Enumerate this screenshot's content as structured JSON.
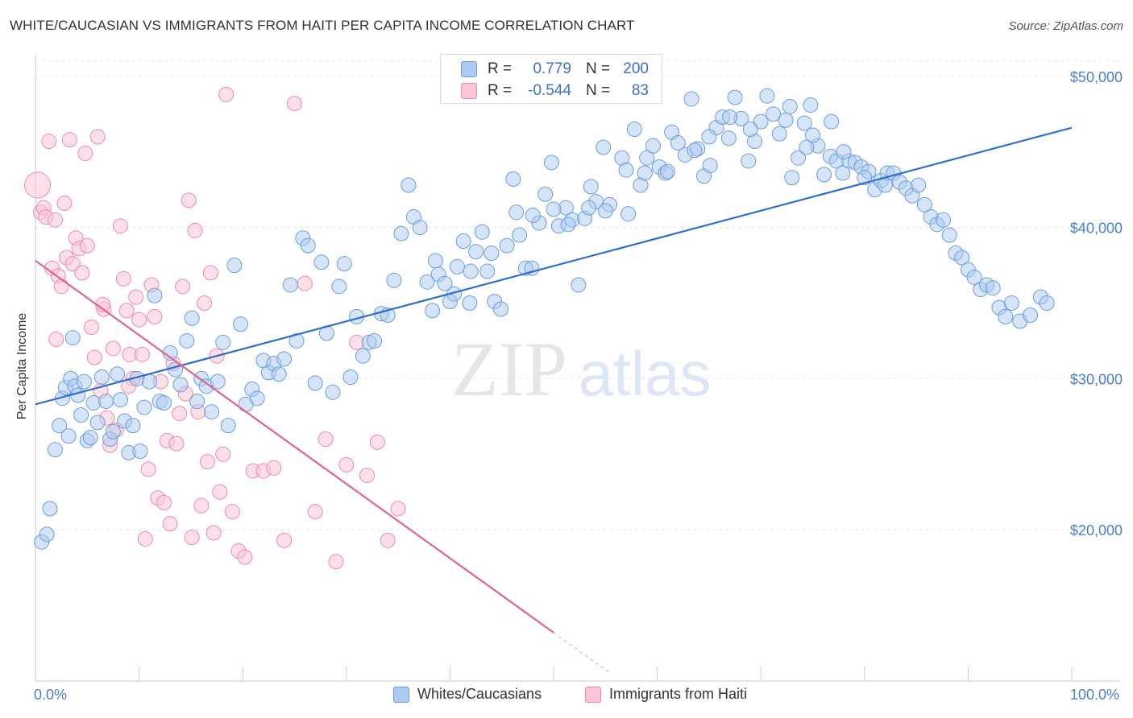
{
  "title": "WHITE/CAUCASIAN VS IMMIGRANTS FROM HAITI PER CAPITA INCOME CORRELATION CHART",
  "source": "Source: ZipAtlas.com",
  "watermark": {
    "zip": "ZIP",
    "atlas": "atlas"
  },
  "legend_top": {
    "rows": [
      {
        "r_label": "R =",
        "r_value": "0.779",
        "n_label": "N =",
        "n_value": "200",
        "color": "#8fb6ea"
      },
      {
        "r_label": "R =",
        "r_value": "-0.544",
        "n_label": "N =",
        "n_value": "83",
        "color": "#f4a9c1"
      }
    ]
  },
  "legend_bottom": [
    {
      "label": "Whites/Caucasians",
      "color": "#8fb6ea"
    },
    {
      "label": "Immigrants from Haiti",
      "color": "#f4a9c1"
    }
  ],
  "chart_data": {
    "type": "scatter",
    "title": "WHITE/CAUCASIAN VS IMMIGRANTS FROM HAITI PER CAPITA INCOME CORRELATION CHART",
    "xlabel": "",
    "ylabel": "Per Capita Income",
    "x_tick_labels": [
      "0.0%",
      "100.0%"
    ],
    "y_tick_labels": [
      "$20,000",
      "$30,000",
      "$40,000",
      "$50,000"
    ],
    "y_ticks": [
      20000,
      30000,
      40000,
      50000
    ],
    "xlim": [
      0,
      100
    ],
    "ylim": [
      10000,
      51000
    ],
    "grid": true,
    "colors": {
      "whites": "#6a9de0",
      "whites_fill": "#aecaf0",
      "haiti": "#ef89aa",
      "haiti_fill": "#f9c6d6",
      "whites_line": "#2f6fcf",
      "haiti_line": "#e0658e"
    },
    "series": [
      {
        "name": "Whites/Caucasians",
        "trend": {
          "x": [
            0,
            100
          ],
          "y": [
            28300,
            46600
          ]
        },
        "points": [
          [
            0.6,
            19200
          ],
          [
            1.1,
            19700
          ],
          [
            1.4,
            21400
          ],
          [
            1.9,
            25300
          ],
          [
            2.3,
            26900
          ],
          [
            2.6,
            28700
          ],
          [
            2.9,
            29400
          ],
          [
            3.2,
            26200
          ],
          [
            3.4,
            30000
          ],
          [
            3.6,
            32700
          ],
          [
            3.8,
            29500
          ],
          [
            4.1,
            28900
          ],
          [
            4.4,
            27600
          ],
          [
            4.7,
            29800
          ],
          [
            5.0,
            25900
          ],
          [
            5.3,
            26100
          ],
          [
            5.6,
            28400
          ],
          [
            6.0,
            27100
          ],
          [
            6.4,
            30100
          ],
          [
            6.8,
            28500
          ],
          [
            7.2,
            26000
          ],
          [
            7.5,
            26500
          ],
          [
            7.9,
            30300
          ],
          [
            8.2,
            28600
          ],
          [
            8.6,
            27200
          ],
          [
            9.0,
            25100
          ],
          [
            9.4,
            26900
          ],
          [
            9.8,
            30000
          ],
          [
            10.1,
            25200
          ],
          [
            10.5,
            28100
          ],
          [
            11.0,
            29800
          ],
          [
            11.5,
            35500
          ],
          [
            12.0,
            28500
          ],
          [
            12.4,
            28400
          ],
          [
            13.0,
            31700
          ],
          [
            13.5,
            30600
          ],
          [
            14.0,
            29600
          ],
          [
            14.6,
            32500
          ],
          [
            15.1,
            34000
          ],
          [
            15.6,
            28500
          ],
          [
            16.0,
            30000
          ],
          [
            16.5,
            29500
          ],
          [
            17.0,
            27800
          ],
          [
            17.6,
            29800
          ],
          [
            18.1,
            32400
          ],
          [
            18.6,
            26900
          ],
          [
            19.2,
            37500
          ],
          [
            19.8,
            33600
          ],
          [
            20.3,
            28300
          ],
          [
            20.9,
            29300
          ],
          [
            21.4,
            28700
          ],
          [
            22.0,
            31200
          ],
          [
            22.5,
            30400
          ],
          [
            23.0,
            31000
          ],
          [
            23.5,
            30300
          ],
          [
            24.0,
            31300
          ],
          [
            24.6,
            36200
          ],
          [
            25.2,
            32500
          ],
          [
            25.8,
            39300
          ],
          [
            26.3,
            38800
          ],
          [
            27.0,
            29700
          ],
          [
            27.6,
            37700
          ],
          [
            28.1,
            33000
          ],
          [
            28.7,
            29100
          ],
          [
            29.3,
            36100
          ],
          [
            29.8,
            37600
          ],
          [
            30.4,
            30100
          ],
          [
            31.0,
            34100
          ],
          [
            31.6,
            31500
          ],
          [
            32.2,
            32400
          ],
          [
            32.7,
            32500
          ],
          [
            33.4,
            34300
          ],
          [
            34.0,
            34200
          ],
          [
            34.6,
            36500
          ],
          [
            35.3,
            39600
          ],
          [
            36.0,
            42800
          ],
          [
            36.5,
            40700
          ],
          [
            37.1,
            40000
          ],
          [
            37.8,
            36400
          ],
          [
            38.3,
            34500
          ],
          [
            38.9,
            36900
          ],
          [
            39.5,
            36300
          ],
          [
            40.0,
            35100
          ],
          [
            40.7,
            37400
          ],
          [
            41.3,
            39100
          ],
          [
            41.9,
            35000
          ],
          [
            42.5,
            38400
          ],
          [
            43.1,
            39700
          ],
          [
            43.6,
            37100
          ],
          [
            44.3,
            35100
          ],
          [
            44.9,
            34600
          ],
          [
            45.5,
            38800
          ],
          [
            46.1,
            43200
          ],
          [
            46.7,
            39500
          ],
          [
            47.3,
            37300
          ],
          [
            47.9,
            37300
          ],
          [
            48.6,
            40300
          ],
          [
            49.2,
            42200
          ],
          [
            49.8,
            44300
          ],
          [
            50.5,
            40100
          ],
          [
            51.2,
            41300
          ],
          [
            51.8,
            40500
          ],
          [
            52.4,
            36200
          ],
          [
            53.0,
            40600
          ],
          [
            53.6,
            42700
          ],
          [
            54.1,
            41700
          ],
          [
            54.8,
            45300
          ],
          [
            55.4,
            41500
          ],
          [
            56.0,
            49000
          ],
          [
            56.6,
            44600
          ],
          [
            57.2,
            40900
          ],
          [
            57.8,
            46500
          ],
          [
            58.4,
            42800
          ],
          [
            59.0,
            44600
          ],
          [
            59.6,
            45400
          ],
          [
            60.2,
            44000
          ],
          [
            60.8,
            43600
          ],
          [
            61.4,
            46300
          ],
          [
            62.0,
            45600
          ],
          [
            62.7,
            44800
          ],
          [
            63.3,
            48500
          ],
          [
            63.9,
            45200
          ],
          [
            64.5,
            43400
          ],
          [
            65.1,
            44100
          ],
          [
            65.7,
            46600
          ],
          [
            66.3,
            47300
          ],
          [
            66.9,
            45900
          ],
          [
            67.5,
            48600
          ],
          [
            68.1,
            47200
          ],
          [
            68.8,
            44400
          ],
          [
            69.4,
            45700
          ],
          [
            70.0,
            47000
          ],
          [
            70.6,
            48700
          ],
          [
            71.2,
            47500
          ],
          [
            71.8,
            46200
          ],
          [
            72.4,
            47100
          ],
          [
            73.0,
            43300
          ],
          [
            73.6,
            44600
          ],
          [
            74.2,
            46900
          ],
          [
            74.8,
            48100
          ],
          [
            75.5,
            45400
          ],
          [
            76.1,
            43500
          ],
          [
            76.7,
            44700
          ],
          [
            77.3,
            44400
          ],
          [
            77.9,
            43600
          ],
          [
            78.5,
            44400
          ],
          [
            79.1,
            44300
          ],
          [
            79.7,
            44000
          ],
          [
            80.4,
            43700
          ],
          [
            81.0,
            42500
          ],
          [
            81.6,
            43100
          ],
          [
            82.2,
            43600
          ],
          [
            82.8,
            43600
          ],
          [
            83.4,
            43000
          ],
          [
            84.0,
            42600
          ],
          [
            84.6,
            42100
          ],
          [
            85.2,
            42800
          ],
          [
            85.8,
            41500
          ],
          [
            86.4,
            40700
          ],
          [
            87.0,
            40200
          ],
          [
            87.6,
            40500
          ],
          [
            88.2,
            39500
          ],
          [
            88.8,
            38300
          ],
          [
            89.4,
            38000
          ],
          [
            90.0,
            37200
          ],
          [
            90.6,
            36700
          ],
          [
            91.2,
            35900
          ],
          [
            91.8,
            36200
          ],
          [
            92.4,
            36000
          ],
          [
            93.0,
            34700
          ],
          [
            93.6,
            34100
          ],
          [
            94.2,
            35000
          ],
          [
            95.0,
            33800
          ],
          [
            96.0,
            34200
          ],
          [
            97.0,
            35400
          ],
          [
            97.6,
            35000
          ],
          [
            75.0,
            46100
          ],
          [
            78.0,
            45000
          ],
          [
            80.0,
            43300
          ],
          [
            82.0,
            42800
          ],
          [
            76.8,
            47000
          ],
          [
            72.8,
            48000
          ],
          [
            74.4,
            45300
          ],
          [
            69.0,
            46500
          ],
          [
            67.0,
            47300
          ],
          [
            65.0,
            46000
          ],
          [
            63.6,
            45100
          ],
          [
            61.0,
            43700
          ],
          [
            58.8,
            43600
          ],
          [
            57.0,
            43800
          ],
          [
            55.0,
            41100
          ],
          [
            53.4,
            41300
          ],
          [
            51.4,
            40200
          ],
          [
            50.0,
            41200
          ],
          [
            48.0,
            40800
          ],
          [
            46.4,
            41000
          ],
          [
            44.0,
            38300
          ],
          [
            42.0,
            37100
          ],
          [
            40.4,
            35600
          ],
          [
            38.6,
            37800
          ]
        ]
      },
      {
        "name": "Immigrants from Haiti",
        "trend": {
          "x": [
            0,
            50
          ],
          "y": [
            37800,
            13200
          ]
        },
        "points": [
          [
            0.2,
            42800
          ],
          [
            0.5,
            41000
          ],
          [
            0.8,
            41300
          ],
          [
            1.0,
            40700
          ],
          [
            1.3,
            45700
          ],
          [
            1.6,
            37300
          ],
          [
            1.9,
            40500
          ],
          [
            2.2,
            36800
          ],
          [
            2.5,
            36100
          ],
          [
            2.8,
            41600
          ],
          [
            3.0,
            38000
          ],
          [
            3.3,
            45800
          ],
          [
            3.6,
            37600
          ],
          [
            3.9,
            39300
          ],
          [
            4.2,
            38600
          ],
          [
            4.5,
            37000
          ],
          [
            4.8,
            44900
          ],
          [
            5.0,
            38800
          ],
          [
            5.4,
            33400
          ],
          [
            5.7,
            31400
          ],
          [
            6.0,
            46000
          ],
          [
            6.3,
            29200
          ],
          [
            6.6,
            34600
          ],
          [
            6.9,
            27400
          ],
          [
            7.2,
            25600
          ],
          [
            7.5,
            32000
          ],
          [
            7.8,
            26600
          ],
          [
            8.2,
            40100
          ],
          [
            8.5,
            36600
          ],
          [
            8.8,
            34500
          ],
          [
            9.1,
            31600
          ],
          [
            9.4,
            30000
          ],
          [
            9.7,
            35400
          ],
          [
            10.0,
            33900
          ],
          [
            10.3,
            31600
          ],
          [
            10.6,
            19400
          ],
          [
            10.9,
            24000
          ],
          [
            11.2,
            36200
          ],
          [
            11.5,
            34100
          ],
          [
            11.8,
            22100
          ],
          [
            12.1,
            29800
          ],
          [
            12.4,
            21800
          ],
          [
            12.7,
            25900
          ],
          [
            13.0,
            20400
          ],
          [
            13.3,
            31000
          ],
          [
            13.6,
            25700
          ],
          [
            13.9,
            27700
          ],
          [
            14.2,
            36100
          ],
          [
            14.5,
            29000
          ],
          [
            14.8,
            41800
          ],
          [
            15.1,
            19500
          ],
          [
            15.4,
            39800
          ],
          [
            15.7,
            27800
          ],
          [
            16.0,
            21600
          ],
          [
            16.3,
            35000
          ],
          [
            16.6,
            24500
          ],
          [
            16.9,
            37000
          ],
          [
            17.2,
            19800
          ],
          [
            17.5,
            31500
          ],
          [
            17.8,
            22500
          ],
          [
            18.1,
            25000
          ],
          [
            18.4,
            48800
          ],
          [
            19.0,
            21200
          ],
          [
            19.6,
            18600
          ],
          [
            20.2,
            18200
          ],
          [
            21.0,
            23900
          ],
          [
            22.0,
            23900
          ],
          [
            23.0,
            24100
          ],
          [
            24.0,
            19300
          ],
          [
            25.0,
            48200
          ],
          [
            26.0,
            36300
          ],
          [
            27.0,
            21200
          ],
          [
            28.0,
            26000
          ],
          [
            29.0,
            17900
          ],
          [
            30.0,
            24300
          ],
          [
            31.0,
            32400
          ],
          [
            32.0,
            23600
          ],
          [
            33.0,
            25800
          ],
          [
            34.0,
            19300
          ],
          [
            35.0,
            21400
          ],
          [
            2.0,
            32600
          ],
          [
            6.5,
            34900
          ],
          [
            9.0,
            29500
          ]
        ]
      }
    ]
  }
}
